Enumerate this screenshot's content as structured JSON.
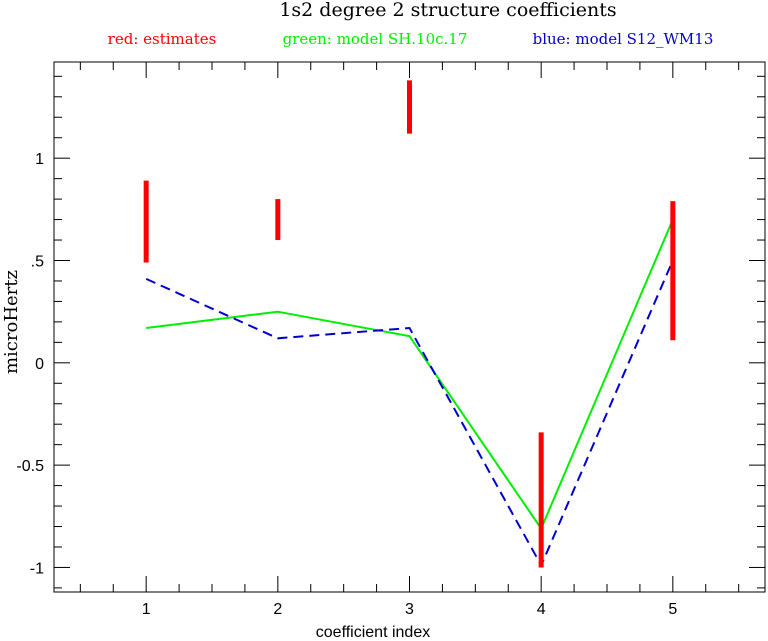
{
  "chart_data": {
    "type": "line",
    "title": "1s2 degree 2 structure coefficients",
    "xlabel": "coefficient index",
    "ylabel": "microHertz",
    "xlim": [
      0.3,
      5.7
    ],
    "ylim": [
      -1.12,
      1.47
    ],
    "x_ticks": [
      1,
      2,
      3,
      4,
      5
    ],
    "y_ticks": [
      -1,
      -0.5,
      0,
      0.5,
      1
    ],
    "y_tick_labels": [
      "-1",
      "-0.5",
      "0",
      ".5",
      "1"
    ],
    "grid": false,
    "legend": [
      {
        "label": "red: estimates",
        "color": "#ff0000"
      },
      {
        "label": "green: model SH.10c.17",
        "color": "#00ee00"
      },
      {
        "label": "blue: model S12_WM13",
        "color": "#0000cc"
      }
    ],
    "estimates": {
      "name": "red: estimates",
      "color": "#ff0000",
      "x": [
        1,
        2,
        3,
        4,
        5
      ],
      "low": [
        0.49,
        0.6,
        1.12,
        -1.0,
        0.11
      ],
      "high": [
        0.89,
        0.8,
        1.38,
        -0.34,
        0.79
      ]
    },
    "series": [
      {
        "name": "green: model SH.10c.17",
        "color": "#00ee00",
        "style": "solid",
        "x": [
          1,
          2,
          3,
          4,
          5
        ],
        "values": [
          0.17,
          0.25,
          0.13,
          -0.81,
          0.7
        ]
      },
      {
        "name": "blue: model S12_WM13",
        "color": "#0000cc",
        "style": "dashed",
        "x": [
          1,
          2,
          3,
          4,
          5
        ],
        "values": [
          0.41,
          0.12,
          0.17,
          -0.99,
          0.5
        ]
      }
    ]
  }
}
